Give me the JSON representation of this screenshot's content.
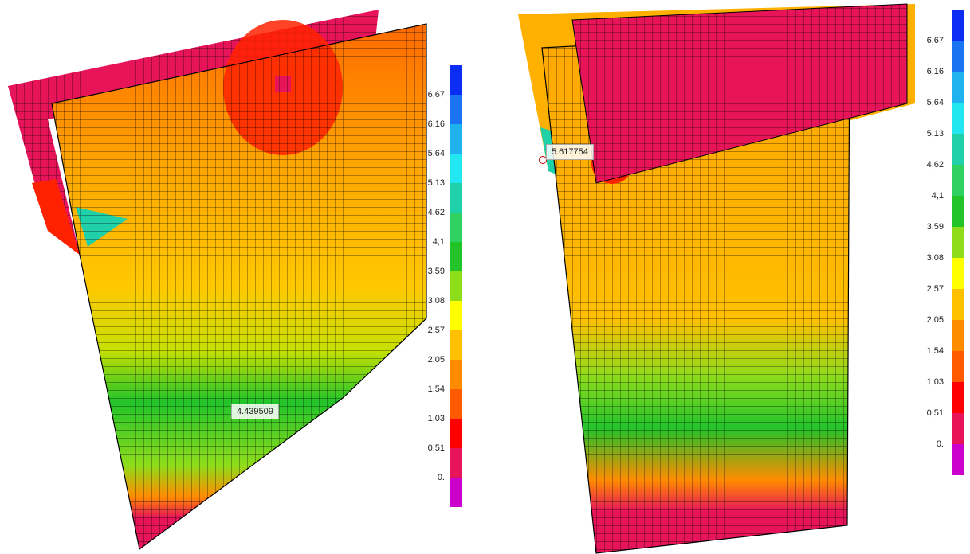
{
  "legend": {
    "ticks": [
      "6,67",
      "6,16",
      "5,64",
      "5,13",
      "4,62",
      "4,1",
      "3,59",
      "3,08",
      "2,57",
      "2,05",
      "1,54",
      "1,03",
      "0,51",
      "0."
    ],
    "colors": [
      "#0b2cf2",
      "#1a73f0",
      "#1fb2ee",
      "#22e6f0",
      "#1fd0a8",
      "#2ed162",
      "#22c42a",
      "#8fdc1b",
      "#ffff00",
      "#ffc000",
      "#ff8c00",
      "#ff5a00",
      "#ff0000",
      "#e8145a",
      "#cc00cc"
    ]
  },
  "left_view": {
    "probe_value": "4.439509"
  },
  "right_view": {
    "probe_value": "5.617754"
  }
}
